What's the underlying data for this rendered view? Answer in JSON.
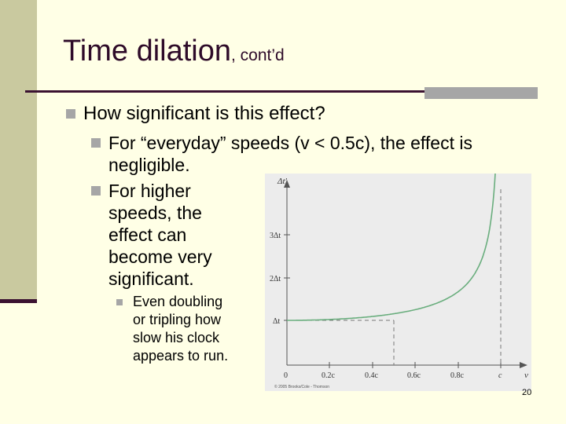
{
  "slide": {
    "title": "Time dilation",
    "title_suffix": ", cont’d",
    "bullets": [
      "How significant is this effect?",
      "For “everyday” speeds (v < 0.5c), the effect is negligible.",
      "For higher speeds, the effect can become very significant.",
      "Even doubling or tripling how slow his clock appears to run."
    ],
    "page_number": "20"
  },
  "figure": {
    "y_axis_label": "Δt′",
    "x_axis_label": "v",
    "y_ticks": [
      "3Δt",
      "2Δt",
      "Δt"
    ],
    "x_ticks": [
      "0",
      "0.2c",
      "0.4c",
      "0.6c",
      "0.8c",
      "c"
    ],
    "copyright": "© 2005 Brooks/Cole - Thomson",
    "colors": {
      "curve": "#6aae7e",
      "panel": "#ececec",
      "axis": "#555555"
    }
  }
}
